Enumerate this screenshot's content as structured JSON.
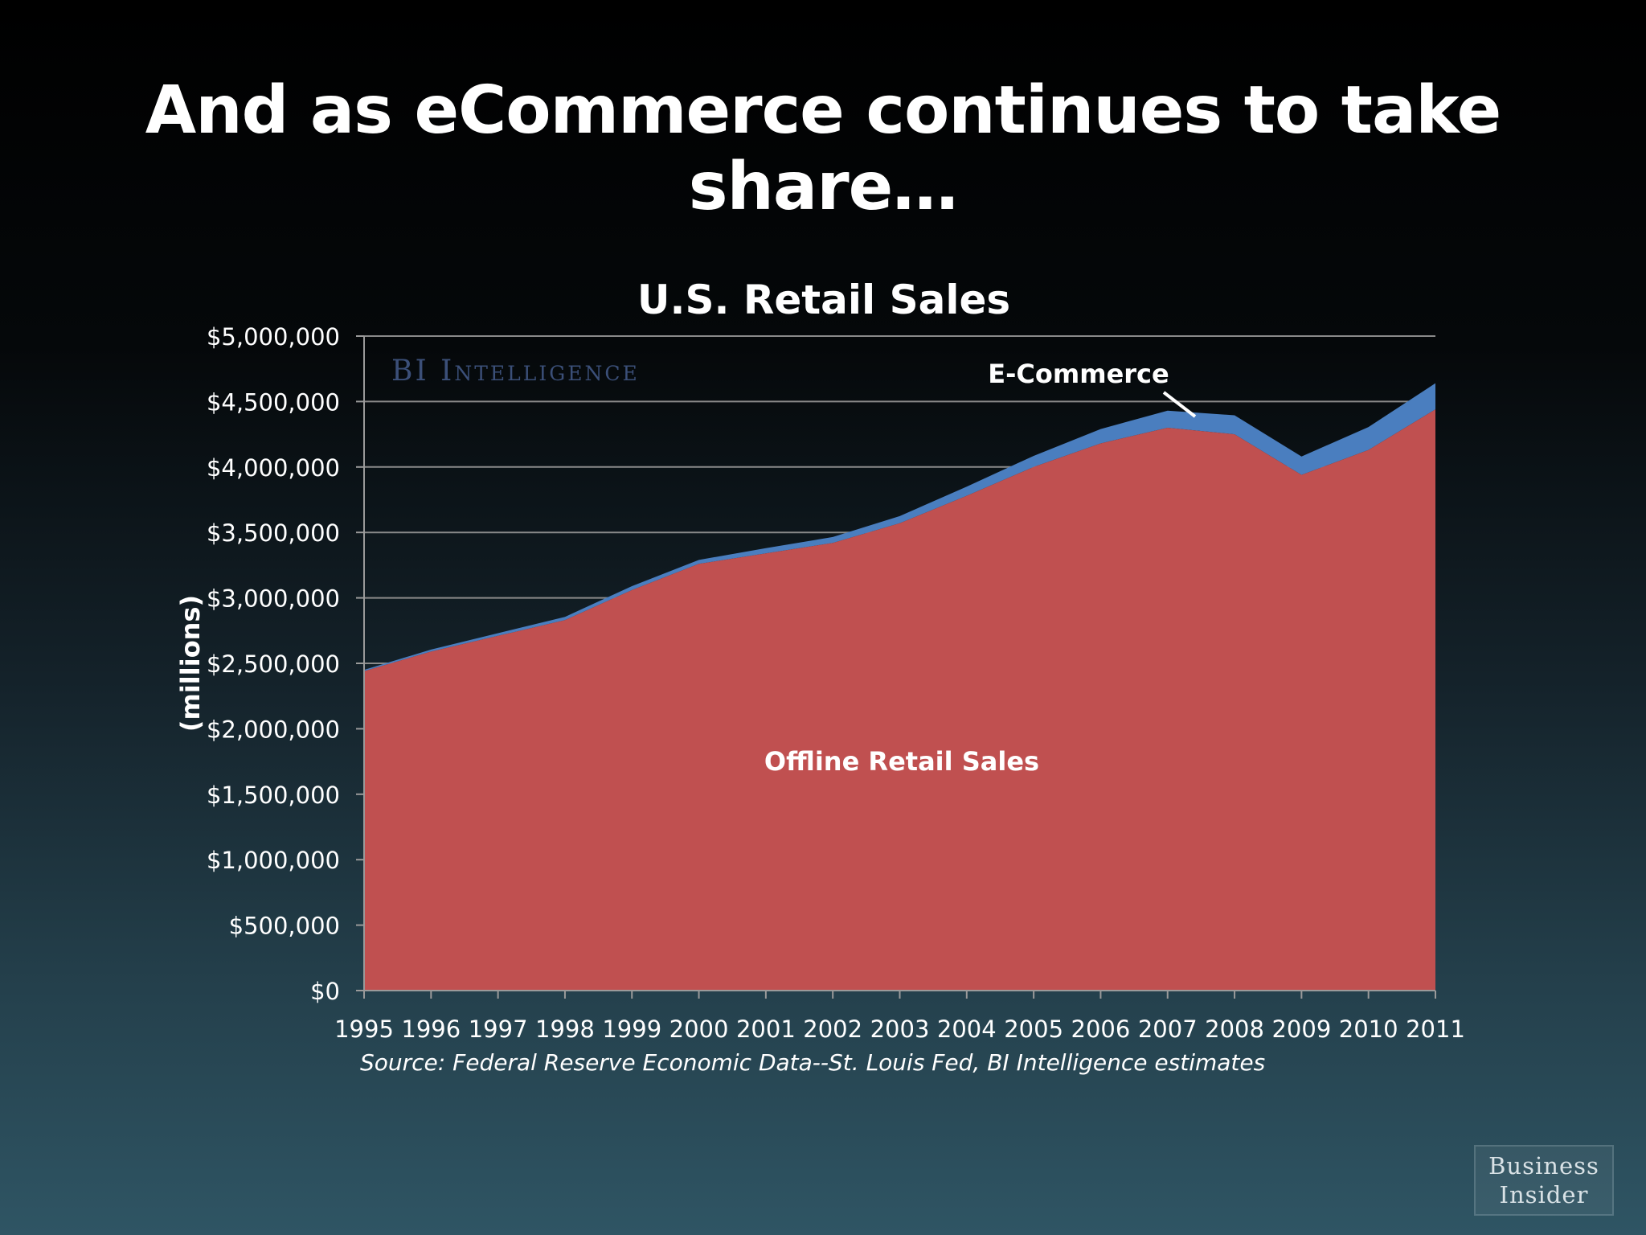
{
  "slide": {
    "title": "And as eCommerce continues to take share…"
  },
  "watermark": "BI Intelligence",
  "logo": {
    "line1": "Business",
    "line2": "Insider"
  },
  "colors": {
    "offline": "#c05050",
    "ecommerce": "#4a7ebf",
    "gridline": "#8a8a8a",
    "axis": "#9a9a9a"
  },
  "chart_data": {
    "type": "area",
    "stacked": true,
    "title": "U.S. Retail Sales",
    "ylabel": "(millions)",
    "xlabel": "",
    "source": "Source: Federal Reserve Economic Data--St. Louis Fed, BI Intelligence estimates",
    "x": [
      "1995",
      "1996",
      "1997",
      "1998",
      "1999",
      "2000",
      "2001",
      "2002",
      "2003",
      "2004",
      "2005",
      "2006",
      "2007",
      "2008",
      "2009",
      "2010",
      "2011"
    ],
    "ylim": [
      0,
      5000000
    ],
    "yticks": [
      0,
      500000,
      1000000,
      1500000,
      2000000,
      2500000,
      3000000,
      3500000,
      4000000,
      4500000,
      5000000
    ],
    "ytick_labels": [
      "$0",
      "$500,000",
      "$1,000,000",
      "$1,500,000",
      "$2,000,000",
      "$2,500,000",
      "$3,000,000",
      "$3,500,000",
      "$4,000,000",
      "$4,500,000",
      "$5,000,000"
    ],
    "grid": true,
    "series": [
      {
        "name": "Offline Retail Sales",
        "color": "#c05050",
        "values": [
          2440000,
          2590000,
          2710000,
          2830000,
          3060000,
          3260000,
          3340000,
          3420000,
          3570000,
          3780000,
          4000000,
          4180000,
          4300000,
          4250000,
          3940000,
          4130000,
          4440000
        ]
      },
      {
        "name": "E-Commerce",
        "color": "#4a7ebf",
        "values": [
          10000,
          15000,
          20000,
          25000,
          30000,
          30000,
          40000,
          45000,
          55000,
          70000,
          85000,
          110000,
          130000,
          145000,
          140000,
          175000,
          200000
        ]
      }
    ]
  }
}
